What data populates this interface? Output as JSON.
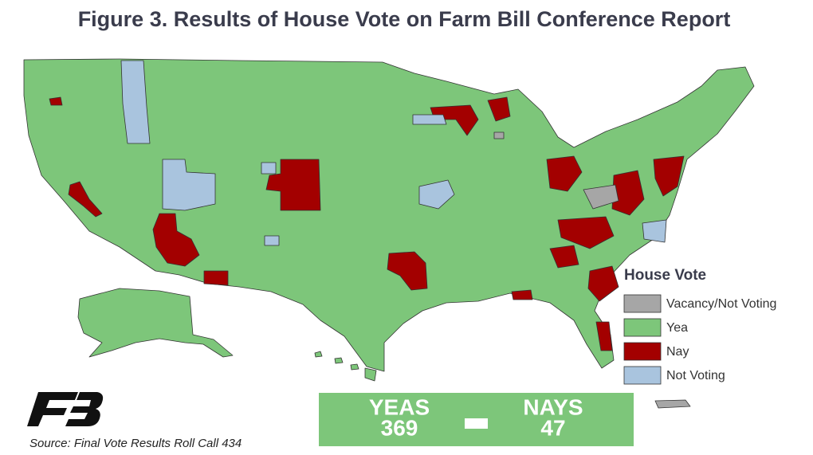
{
  "title": "Figure 3. Results of House Vote on Farm Bill Conference Report",
  "legend": {
    "title": "House Vote",
    "items": [
      {
        "label": "Vacancy/Not Voting",
        "color": "#a6a6a6"
      },
      {
        "label": "Yea",
        "color": "#7dc67a"
      },
      {
        "label": "Nay",
        "color": "#a30000"
      },
      {
        "label": "Not Voting",
        "color": "#a9c4de"
      }
    ]
  },
  "tally": {
    "yeas": {
      "label": "YEAS",
      "value": 369
    },
    "nays": {
      "label": "NAYS",
      "value": 47
    },
    "color": "#7dc67a"
  },
  "source": "Source: Final Vote Results Roll Call 434"
}
